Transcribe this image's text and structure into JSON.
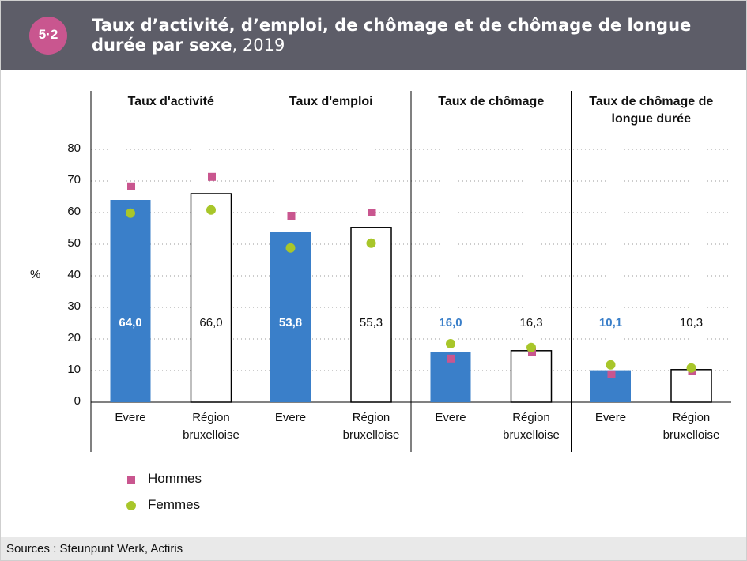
{
  "chart_data": {
    "type": "bar",
    "badge": "5·2",
    "title": "Taux d’activité, d’emploi, de chômage et de chômage de longue durée par sexe",
    "title_suffix": ", 2019",
    "ylabel": "%",
    "ylim": [
      0,
      80
    ],
    "yticks": [
      0,
      10,
      20,
      30,
      40,
      50,
      60,
      70,
      80
    ],
    "grid": true,
    "categories": [
      "Evere",
      "Région bruxelloise"
    ],
    "bar_colors": [
      "#3a7fc9",
      "#ffffff"
    ],
    "series": [
      {
        "name": "Hommes",
        "color": "#c9568f",
        "marker": "square"
      },
      {
        "name": "Femmes",
        "color": "#a8c62a",
        "marker": "circle"
      }
    ],
    "panels": [
      {
        "title": "Taux d'activité",
        "values": [
          64.0,
          66.0
        ],
        "value_labels": [
          "64,0",
          "66,0"
        ],
        "series": [
          {
            "values": [
              68.3,
              71.3
            ]
          },
          {
            "values": [
              59.8,
              60.8
            ]
          }
        ]
      },
      {
        "title": "Taux d'emploi",
        "values": [
          53.8,
          55.3
        ],
        "value_labels": [
          "53,8",
          "55,3"
        ],
        "series": [
          {
            "values": [
              59,
              60
            ]
          },
          {
            "values": [
              48.8,
              50.3
            ]
          }
        ]
      },
      {
        "title": "Taux de chômage",
        "values": [
          16.0,
          16.3
        ],
        "value_labels": [
          "16,0",
          "16,3"
        ],
        "series": [
          {
            "values": [
              13.8,
              15.8
            ]
          },
          {
            "values": [
              18.5,
              17.3
            ]
          }
        ]
      },
      {
        "title": "Taux de chômage de longue durée",
        "values": [
          10.1,
          10.3
        ],
        "value_labels": [
          "10,1",
          "10,3"
        ],
        "series": [
          {
            "values": [
              8.8,
              10
            ]
          },
          {
            "values": [
              11.8,
              10.8
            ]
          }
        ]
      }
    ],
    "source": "Sources : Steunpunt Werk, Actiris"
  }
}
